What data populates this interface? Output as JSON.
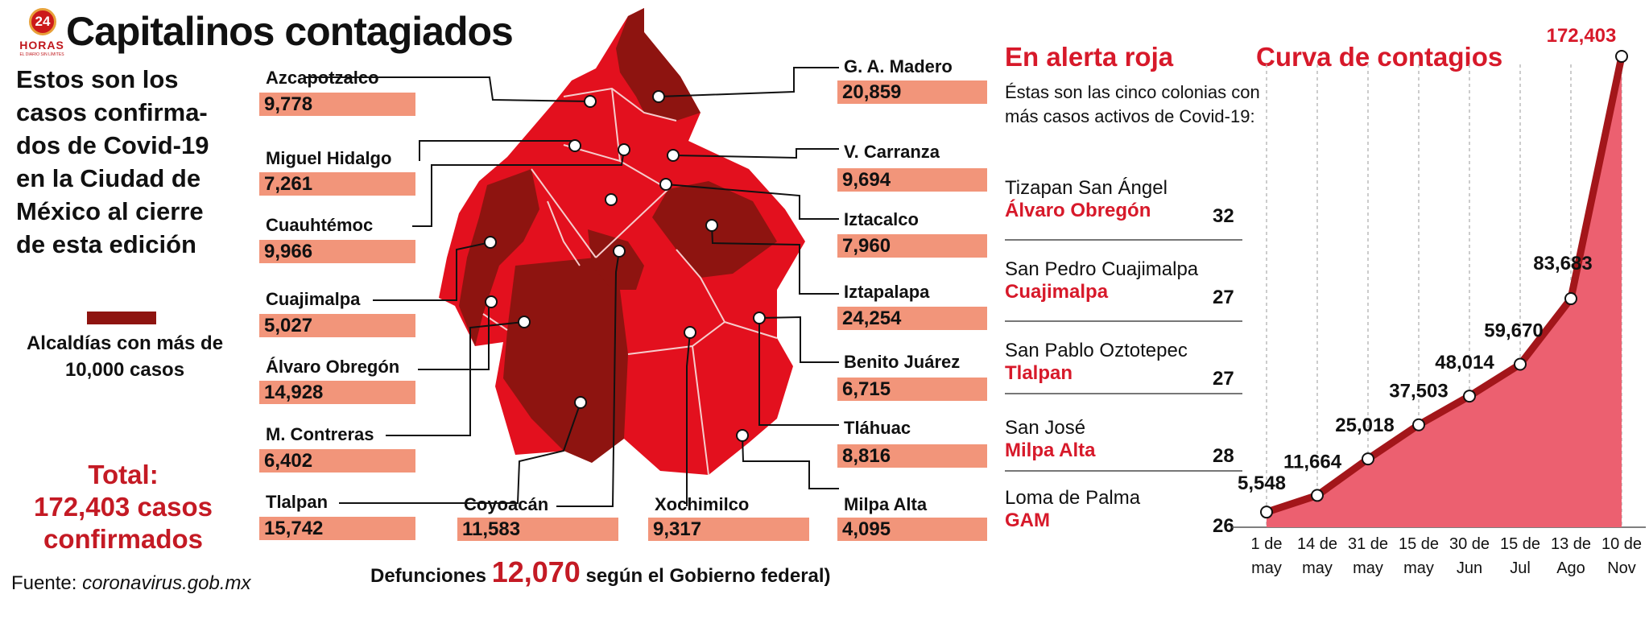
{
  "header": {
    "logo_number": "24",
    "logo_name": "HORAS",
    "logo_tagline": "EL DIARIO SIN LÍMITES",
    "title": "Capitalinos contagiados"
  },
  "intro": "Estos son los casos confirma-dos de Covid-19 en la Ciudad de México al cierre de esta edición",
  "legend": {
    "label": "Alcaldías con más de 10,000 casos",
    "color": "#8e1410"
  },
  "total": {
    "line1": "Total:",
    "line2": "172,403 casos",
    "line3": "confirmados"
  },
  "source": {
    "label": "Fuente:",
    "value": "coronavirus.gob.mx"
  },
  "colors": {
    "high": "#8e1410",
    "low": "#e3101e",
    "value_box": "#f2957a",
    "accent": "#d7192a",
    "curve_fill": "#ec6070",
    "curve_line": "#a3161a"
  },
  "municipalities": [
    {
      "name": "Azcapotzalco",
      "value": "9,778"
    },
    {
      "name": "Miguel Hidalgo",
      "value": "7,261"
    },
    {
      "name": "Cuauhtémoc",
      "value": "9,966"
    },
    {
      "name": "Cuajimalpa",
      "value": "5,027"
    },
    {
      "name": "Álvaro Obregón",
      "value": "14,928"
    },
    {
      "name": "M. Contreras",
      "value": "6,402"
    },
    {
      "name": "Tlalpan",
      "value": "15,742"
    },
    {
      "name": "Coyoacán",
      "value": "11,583"
    },
    {
      "name": "Xochimilco",
      "value": "9,317"
    },
    {
      "name": "G. A. Madero",
      "value": "20,859"
    },
    {
      "name": "V. Carranza",
      "value": "9,694"
    },
    {
      "name": "Iztacalco",
      "value": "7,960"
    },
    {
      "name": "Iztapalapa",
      "value": "24,254"
    },
    {
      "name": "Benito Juárez",
      "value": "6,715"
    },
    {
      "name": "Tláhuac",
      "value": "8,816"
    },
    {
      "name": "Milpa Alta",
      "value": "4,095"
    }
  ],
  "deaths": {
    "prefix": "Defunciones",
    "value": "12,070",
    "suffix": "según el Gobierno federal)"
  },
  "alert": {
    "title": "En alerta roja",
    "description": "Éstas son las cinco colonias con más casos activos de Covid-19:",
    "neighborhoods": [
      {
        "name": "Tizapan San Ángel",
        "municipality": "Álvaro Obregón",
        "count": "32"
      },
      {
        "name": "San Pedro Cuajimalpa",
        "municipality": "Cuajimalpa",
        "count": "27"
      },
      {
        "name": "San Pablo Oztotepec",
        "municipality": "Tlalpan",
        "count": "27"
      },
      {
        "name": "San José",
        "municipality": "Milpa Alta",
        "count": "28"
      },
      {
        "name": "Loma de Palma",
        "municipality": "GAM",
        "count": "26"
      }
    ]
  },
  "chart_data": {
    "type": "area",
    "title": "Curva de contagios",
    "x": [
      [
        "1 de",
        "may"
      ],
      [
        "14 de",
        "may"
      ],
      [
        "31 de",
        "may"
      ],
      [
        "15 de",
        "may"
      ],
      [
        "30 de",
        "Jun"
      ],
      [
        "15 de",
        "Jul"
      ],
      [
        "13 de",
        "Ago"
      ],
      [
        "10 de",
        "Nov"
      ]
    ],
    "values": [
      5548,
      11664,
      25018,
      37503,
      48014,
      59670,
      83683,
      172403
    ],
    "value_labels": [
      "5,548",
      "11,664",
      "25,018",
      "37,503",
      "48,014",
      "59,670",
      "83,683",
      "172,403"
    ],
    "ylim": [
      0,
      172403
    ],
    "grid": true,
    "legend": "none"
  }
}
